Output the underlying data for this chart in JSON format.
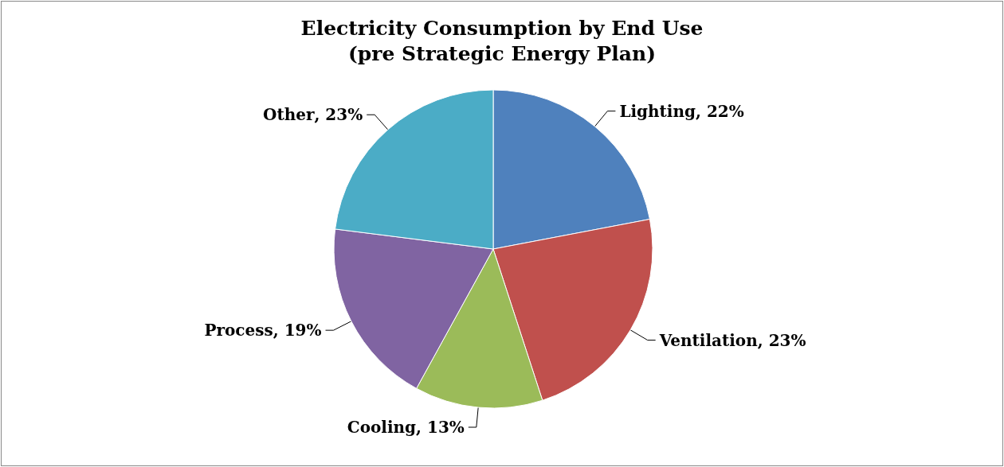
{
  "chart_data": {
    "type": "pie",
    "title": "Electricity Consumption by End Use\n(pre Strategic Energy Plan)",
    "categories": [
      "Lighting",
      "Ventilation",
      "Cooling",
      "Process",
      "Other"
    ],
    "values": [
      22,
      23,
      13,
      19,
      23
    ],
    "colors": [
      "#4f81bd",
      "#c0504d",
      "#9bbb59",
      "#8064a2",
      "#4bacc6"
    ],
    "value_labels": [
      ", 22%",
      ", 23%",
      ", 13%",
      ", 19%",
      ", 23%"
    ],
    "legend": false
  }
}
